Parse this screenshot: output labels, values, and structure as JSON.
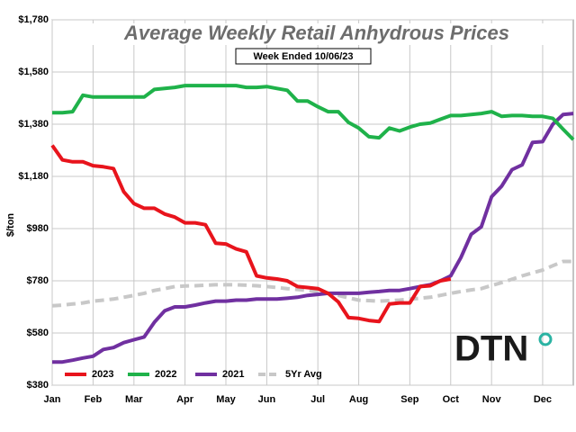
{
  "chart_data": {
    "type": "line",
    "title": "Average Weekly Retail Anhydrous Prices",
    "subtitle": "Week Ended 10/06/23",
    "y_label": "$/ton",
    "logo": "DTN",
    "legend": "bottom left",
    "grid": true,
    "categories": [
      "Jan",
      null,
      null,
      null,
      "Feb",
      null,
      null,
      null,
      "Mar",
      null,
      null,
      null,
      null,
      "Apr",
      null,
      null,
      null,
      "May",
      null,
      null,
      null,
      "Jun",
      null,
      null,
      null,
      null,
      "Jul",
      null,
      null,
      null,
      "Aug",
      null,
      null,
      null,
      null,
      "Sep",
      null,
      null,
      null,
      "Oct",
      null,
      null,
      null,
      "Nov",
      null,
      null,
      null,
      null,
      "Dec",
      null,
      null,
      null
    ],
    "ylim": [
      380,
      1780
    ],
    "yticks": [
      {
        "value": 380,
        "label": "$380"
      },
      {
        "value": 580,
        "label": "$580"
      },
      {
        "value": 780,
        "label": "$780"
      },
      {
        "value": 980,
        "label": "$980"
      },
      {
        "value": 1180,
        "label": "$1,180"
      },
      {
        "value": 1380,
        "label": "$1,380"
      },
      {
        "value": 1580,
        "label": "$1,580"
      },
      {
        "value": 1780,
        "label": "$1,780"
      }
    ],
    "series": [
      {
        "name": "2023",
        "color": "#e8141c",
        "dashed": false,
        "values": [
          1299,
          1243,
          1236,
          1236,
          1221,
          1217,
          1210,
          1121,
          1076,
          1058,
          1058,
          1036,
          1024,
          1002,
          1002,
          995,
          924,
          921,
          902,
          891,
          799,
          791,
          787,
          780,
          758,
          754,
          750,
          732,
          699,
          639,
          636,
          628,
          624,
          691,
          695,
          695,
          758,
          761,
          780,
          787,
          null,
          null,
          null,
          null,
          null,
          null,
          null,
          null,
          null,
          null,
          null,
          null
        ]
      },
      {
        "name": "2022",
        "color": "#1fb24a",
        "dashed": false,
        "values": [
          1424,
          1424,
          1428,
          1491,
          1484,
          1484,
          1484,
          1484,
          1484,
          1484,
          1513,
          1517,
          1521,
          1528,
          1528,
          1528,
          1528,
          1528,
          1528,
          1521,
          1521,
          1524,
          1517,
          1510,
          1469,
          1469,
          1447,
          1428,
          1428,
          1387,
          1365,
          1332,
          1328,
          1365,
          1354,
          1369,
          1380,
          1384,
          1399,
          1413,
          1413,
          1417,
          1421,
          1428,
          1410,
          1413,
          1413,
          1410,
          1410,
          1402,
          1361,
          1321
        ]
      },
      {
        "name": "2021",
        "color": "#7030a0",
        "dashed": false,
        "values": [
          469,
          469,
          476,
          484,
          491,
          517,
          524,
          543,
          554,
          565,
          621,
          665,
          680,
          680,
          687,
          695,
          702,
          702,
          706,
          706,
          710,
          710,
          710,
          713,
          717,
          724,
          728,
          732,
          732,
          732,
          732,
          736,
          739,
          743,
          743,
          750,
          758,
          765,
          780,
          799,
          869,
          958,
          987,
          1102,
          1143,
          1206,
          1224,
          1310,
          1313,
          1380,
          1417,
          1421
        ]
      },
      {
        "name": "5Yr Avg",
        "color": "#c8c8c8",
        "dashed": true,
        "values": [
          684,
          687,
          691,
          695,
          702,
          706,
          710,
          717,
          724,
          732,
          743,
          750,
          758,
          760,
          761,
          763,
          765,
          765,
          765,
          763,
          761,
          758,
          754,
          750,
          747,
          743,
          739,
          732,
          724,
          715,
          706,
          704,
          702,
          704,
          706,
          710,
          713,
          717,
          724,
          732,
          739,
          745,
          750,
          762,
          773,
          786,
          799,
          810,
          821,
          838,
          854,
          854
        ]
      }
    ]
  }
}
